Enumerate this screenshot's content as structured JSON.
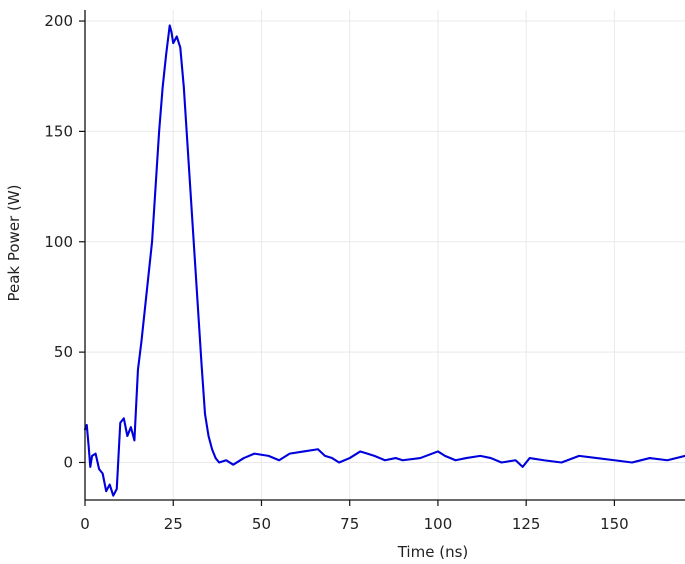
{
  "chart_data": {
    "type": "line",
    "title": "",
    "xlabel": "Time (ns)",
    "ylabel": "Peak Power (W)",
    "xlim": [
      0,
      170
    ],
    "ylim": [
      -17,
      205
    ],
    "x_ticks": [
      0,
      25,
      50,
      75,
      100,
      125,
      150
    ],
    "y_ticks": [
      0,
      50,
      100,
      150,
      200
    ],
    "x_tick_labels": [
      "0",
      "25",
      "50",
      "75",
      "100",
      "125",
      "150"
    ],
    "y_tick_labels": [
      "0",
      "50",
      "100",
      "150",
      "200"
    ],
    "grid": true,
    "legend": "none",
    "series": [
      {
        "color": "#0000dd",
        "x": [
          0,
          0.5,
          1,
          1.5,
          2,
          3,
          4,
          5,
          6,
          7,
          8,
          9,
          10,
          11,
          12,
          13,
          14,
          15,
          16,
          17,
          18,
          19,
          20,
          21,
          22,
          23,
          24,
          24.5,
          25,
          26,
          27,
          28,
          29,
          30,
          31,
          32,
          33,
          34,
          35,
          36,
          37,
          38,
          40,
          42,
          45,
          48,
          52,
          55,
          58,
          62,
          66,
          68,
          70,
          72,
          75,
          78,
          80,
          82,
          85,
          88,
          90,
          95,
          100,
          102,
          105,
          108,
          112,
          115,
          118,
          122,
          124,
          126,
          130,
          135,
          140,
          145,
          150,
          155,
          160,
          165,
          170
        ],
        "y": [
          15,
          17,
          8,
          -2,
          3,
          4,
          -3,
          -5,
          -13,
          -10,
          -15,
          -12,
          18,
          20,
          12,
          16,
          10,
          42,
          55,
          70,
          85,
          100,
          125,
          150,
          170,
          185,
          198,
          195,
          190,
          193,
          188,
          170,
          145,
          120,
          95,
          70,
          45,
          22,
          12,
          6,
          2,
          0,
          1,
          -1,
          2,
          4,
          3,
          1,
          4,
          5,
          6,
          3,
          2,
          0,
          2,
          5,
          4,
          3,
          1,
          2,
          1,
          2,
          5,
          3,
          1,
          2,
          3,
          2,
          0,
          1,
          -2,
          2,
          1,
          0,
          3,
          2,
          1,
          0,
          2,
          1,
          3
        ]
      }
    ]
  }
}
